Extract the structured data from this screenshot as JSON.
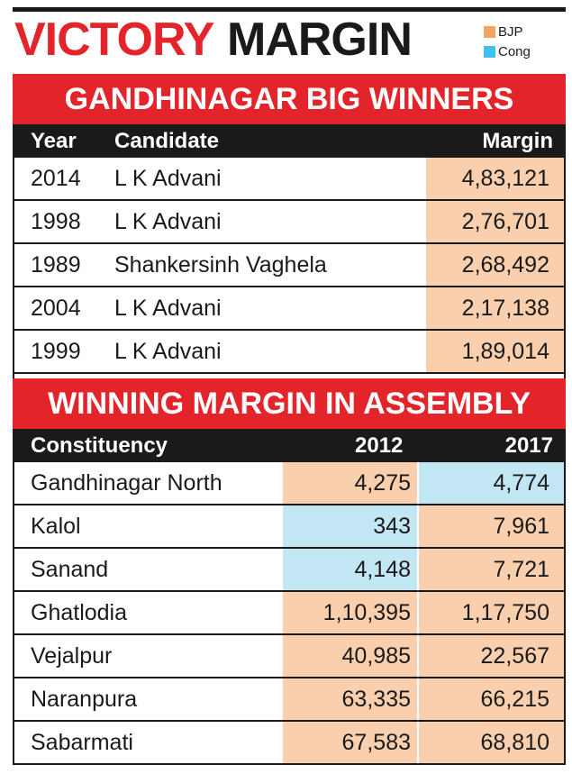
{
  "title": {
    "part1": "VICTORY",
    "part2": "MARGIN"
  },
  "legend": [
    {
      "label": "BJP",
      "color": "#f4a460"
    },
    {
      "label": "Cong",
      "color": "#3fc1ee"
    }
  ],
  "colors": {
    "bjp_fill": "#f9cfae",
    "cong_fill": "#c3e6f5",
    "banner": "#e4242b"
  },
  "chart_data": [
    {
      "type": "table",
      "title": "GANDHINAGAR BIG WINNERS",
      "columns": [
        "Year",
        "Candidate",
        "Margin"
      ],
      "rows": [
        {
          "year": "2014",
          "candidate": "L K Advani",
          "margin": "4,83,121",
          "party": "BJP"
        },
        {
          "year": "1998",
          "candidate": "L K Advani",
          "margin": "2,76,701",
          "party": "BJP"
        },
        {
          "year": "1989",
          "candidate": "Shankersinh Vaghela",
          "margin": "2,68,492",
          "party": "BJP"
        },
        {
          "year": "2004",
          "candidate": "L K Advani",
          "margin": "2,17,138",
          "party": "BJP"
        },
        {
          "year": "1999",
          "candidate": "L K Advani",
          "margin": "1,89,014",
          "party": "BJP"
        }
      ]
    },
    {
      "type": "table",
      "title": "WINNING MARGIN IN ASSEMBLY",
      "columns": [
        "Constituency",
        "2012",
        "2017"
      ],
      "rows": [
        {
          "constituency": "Gandhinagar North",
          "v2012": "4,275",
          "p2012": "BJP",
          "v2017": "4,774",
          "p2017": "Cong"
        },
        {
          "constituency": "Kalol",
          "v2012": "343",
          "p2012": "Cong",
          "v2017": "7,961",
          "p2017": "BJP"
        },
        {
          "constituency": "Sanand",
          "v2012": "4,148",
          "p2012": "Cong",
          "v2017": "7,721",
          "p2017": "BJP"
        },
        {
          "constituency": "Ghatlodia",
          "v2012": "1,10,395",
          "p2012": "BJP",
          "v2017": "1,17,750",
          "p2017": "BJP"
        },
        {
          "constituency": "Vejalpur",
          "v2012": "40,985",
          "p2012": "BJP",
          "v2017": "22,567",
          "p2017": "BJP"
        },
        {
          "constituency": "Naranpura",
          "v2012": "63,335",
          "p2012": "BJP",
          "v2017": "66,215",
          "p2017": "BJP"
        },
        {
          "constituency": "Sabarmati",
          "v2012": "67,583",
          "p2012": "BJP",
          "v2017": "68,810",
          "p2017": "BJP"
        }
      ]
    }
  ]
}
